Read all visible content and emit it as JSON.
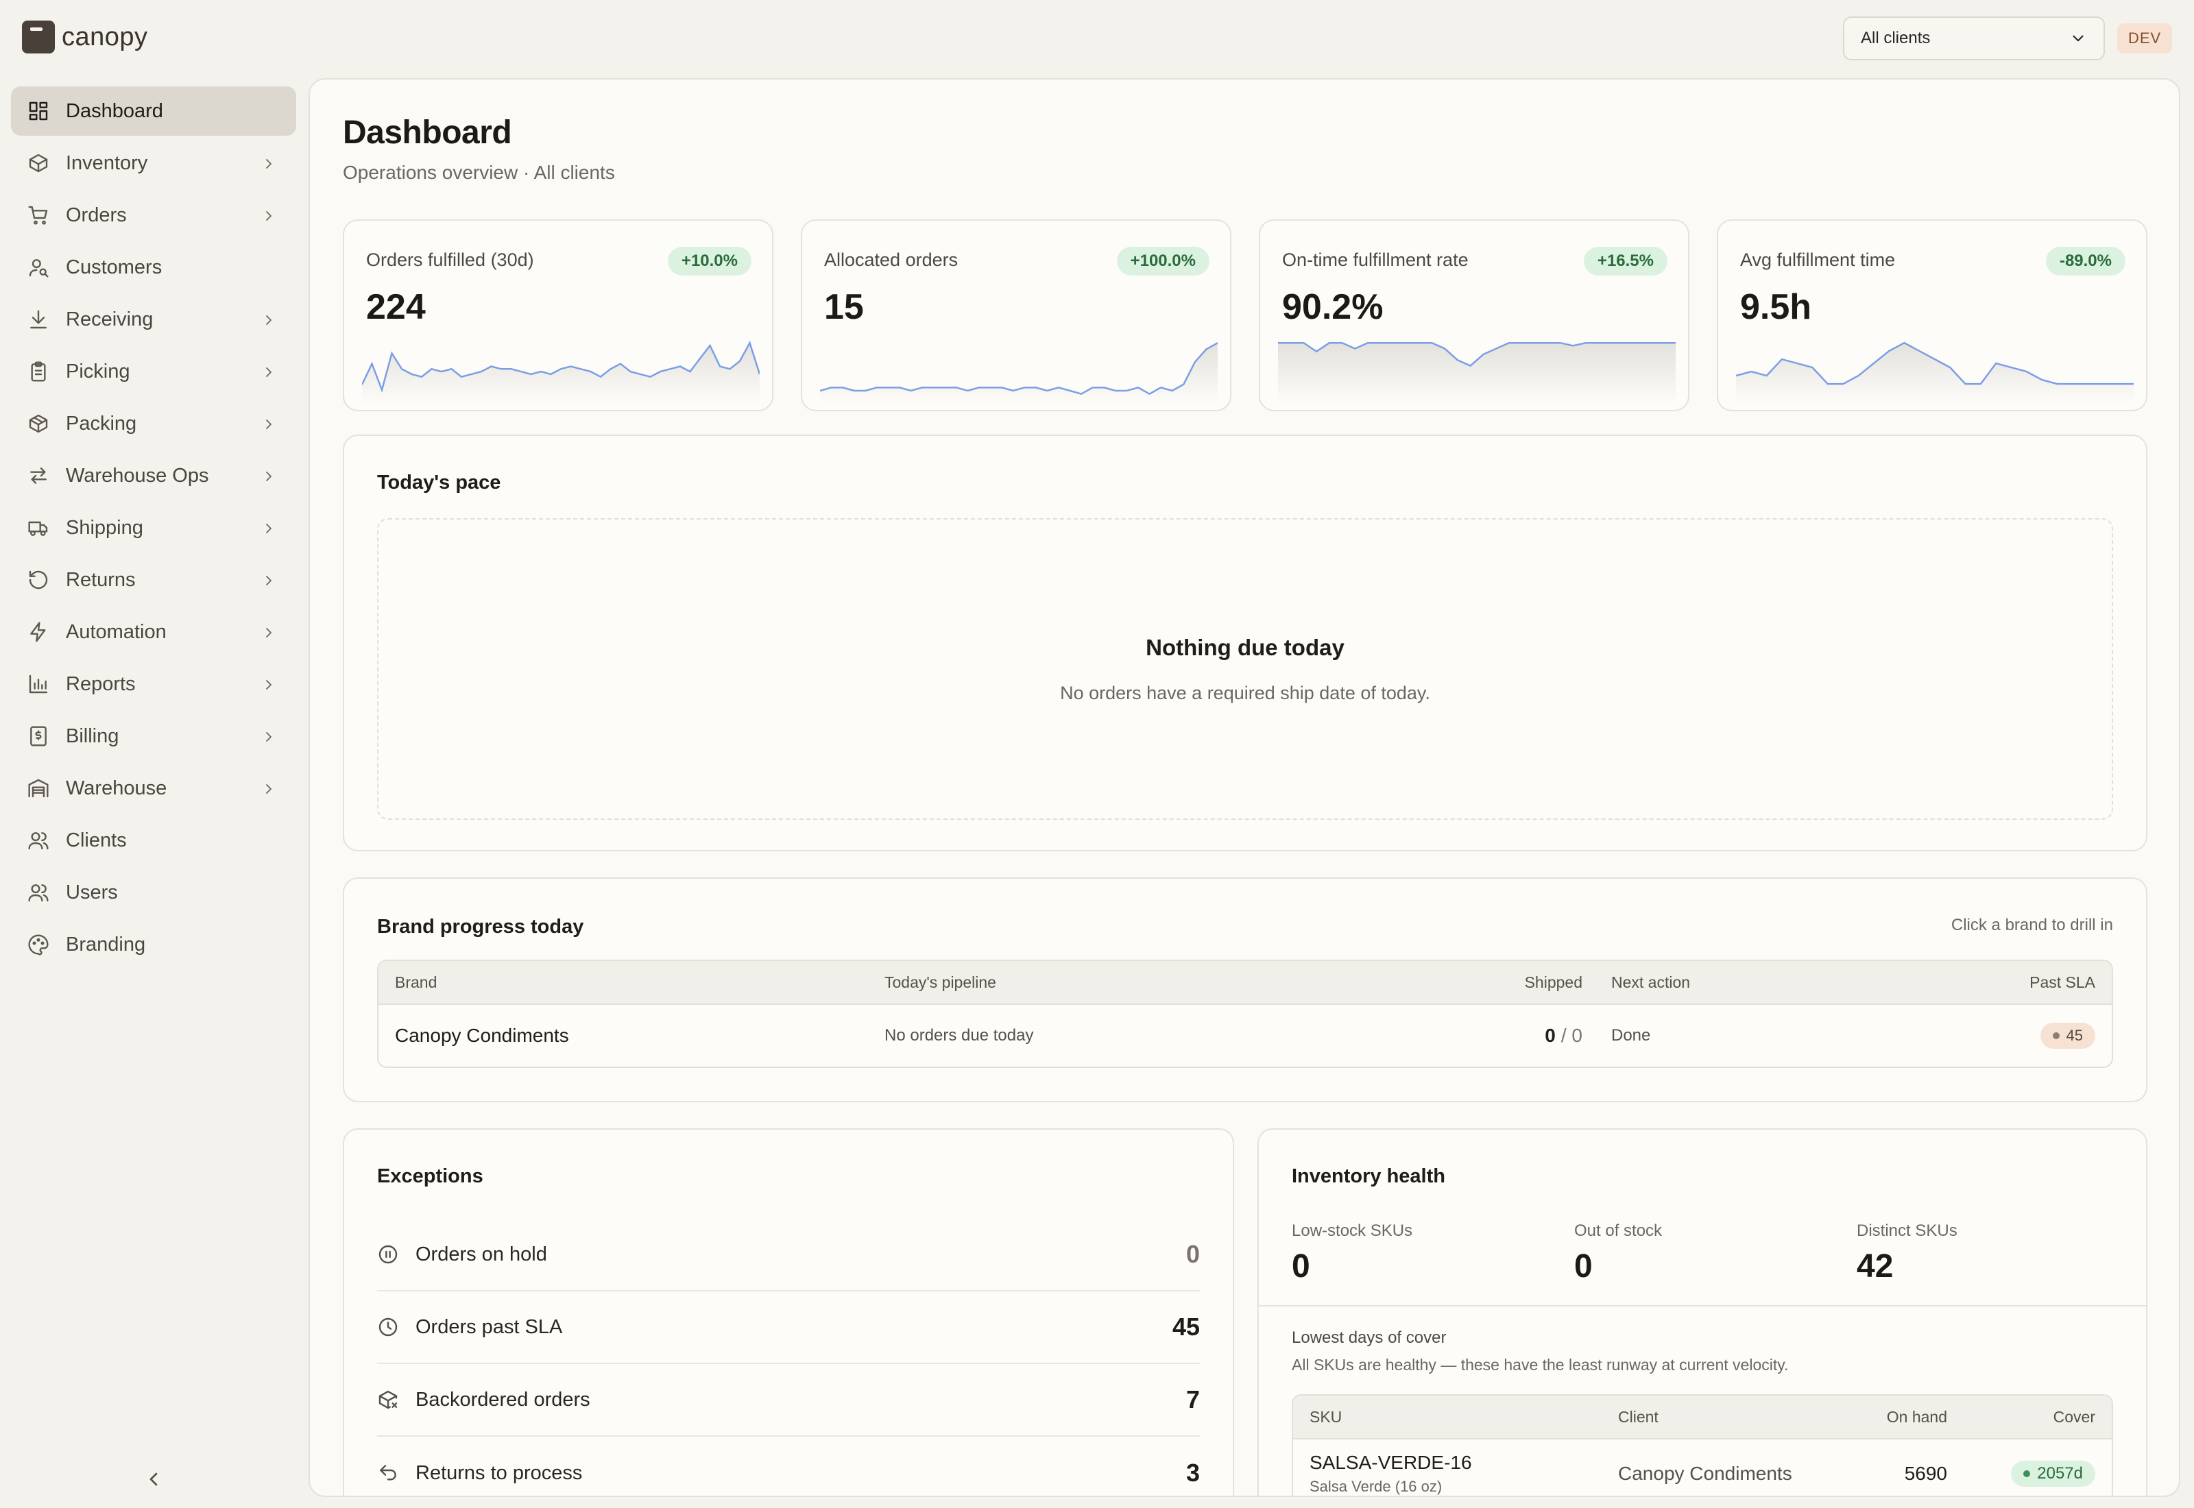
{
  "app": {
    "name": "canopy",
    "env_badge": "DEV"
  },
  "client_select": {
    "value": "All clients"
  },
  "sidebar": {
    "items": [
      {
        "label": "Dashboard",
        "icon": "dashboard-icon",
        "active": true,
        "has_children": false
      },
      {
        "label": "Inventory",
        "icon": "box-icon",
        "has_children": true
      },
      {
        "label": "Orders",
        "icon": "cart-icon",
        "has_children": true
      },
      {
        "label": "Customers",
        "icon": "user-icon",
        "has_children": false
      },
      {
        "label": "Receiving",
        "icon": "download-icon",
        "has_children": true
      },
      {
        "label": "Picking",
        "icon": "clipboard-icon",
        "has_children": true
      },
      {
        "label": "Packing",
        "icon": "package-icon",
        "has_children": true
      },
      {
        "label": "Warehouse Ops",
        "icon": "arrows-icon",
        "has_children": true
      },
      {
        "label": "Shipping",
        "icon": "truck-icon",
        "has_children": true
      },
      {
        "label": "Returns",
        "icon": "rotate-icon",
        "has_children": true
      },
      {
        "label": "Automation",
        "icon": "bolt-icon",
        "has_children": true
      },
      {
        "label": "Reports",
        "icon": "bar-chart-icon",
        "has_children": true
      },
      {
        "label": "Billing",
        "icon": "receipt-icon",
        "has_children": true
      },
      {
        "label": "Warehouse",
        "icon": "warehouse-icon",
        "has_children": true
      },
      {
        "label": "Clients",
        "icon": "users-icon",
        "has_children": false
      },
      {
        "label": "Users",
        "icon": "users-icon",
        "has_children": false
      },
      {
        "label": "Branding",
        "icon": "palette-icon",
        "has_children": false
      }
    ]
  },
  "header": {
    "title": "Dashboard",
    "subtitle": "Operations overview · All clients"
  },
  "kpis": [
    {
      "label": "Orders fulfilled (30d)",
      "value": "224",
      "delta": "+10.0%",
      "spark": [
        6,
        14,
        4,
        18,
        12,
        10,
        9,
        12,
        11,
        12,
        9,
        10,
        11,
        13,
        12,
        12,
        11,
        10,
        11,
        10,
        12,
        13,
        12,
        11,
        9,
        12,
        14,
        11,
        10,
        9,
        11,
        12,
        13,
        11,
        16,
        21,
        13,
        12,
        15,
        22,
        10
      ]
    },
    {
      "label": "Allocated orders",
      "value": "15",
      "delta": "+100.0%",
      "spark": [
        3,
        4,
        4,
        3,
        3,
        4,
        4,
        4,
        3,
        4,
        4,
        4,
        4,
        3,
        4,
        4,
        4,
        3,
        4,
        4,
        3,
        4,
        3,
        2,
        4,
        4,
        3,
        3,
        4,
        2,
        4,
        3,
        5,
        12,
        16,
        18
      ]
    },
    {
      "label": "On-time fulfillment rate",
      "value": "90.2%",
      "delta": "+16.5%",
      "spark": [
        20,
        20,
        20,
        17,
        20,
        20,
        18,
        20,
        20,
        20,
        20,
        20,
        20,
        18,
        14,
        12,
        16,
        18,
        20,
        20,
        20,
        20,
        20,
        19,
        20,
        20,
        20,
        20,
        20,
        20,
        20,
        20
      ]
    },
    {
      "label": "Avg fulfillment time",
      "value": "9.5h",
      "delta": "-89.0%",
      "spark": [
        6,
        7,
        6,
        10,
        9,
        8,
        4,
        4,
        6,
        9,
        12,
        14,
        12,
        10,
        8,
        4,
        4,
        9,
        8,
        7,
        5,
        4,
        4,
        4,
        4,
        4,
        4
      ]
    }
  ],
  "pace": {
    "title": "Today's pace",
    "empty_title": "Nothing due today",
    "empty_text": "No orders have a required ship date of today."
  },
  "brand_progress": {
    "title": "Brand progress today",
    "hint": "Click a brand to drill in",
    "columns": [
      "Brand",
      "Today's pipeline",
      "Shipped",
      "Next action",
      "Past SLA"
    ],
    "rows": [
      {
        "brand": "Canopy Condiments",
        "pipeline": "No orders due today",
        "shipped": "0",
        "shipped_total": "/ 0",
        "next_action": "Done",
        "past_sla": "45"
      }
    ]
  },
  "exceptions": {
    "title": "Exceptions",
    "items": [
      {
        "label": "Orders on hold",
        "count": "0",
        "icon": "pause-circle-icon"
      },
      {
        "label": "Orders past SLA",
        "count": "45",
        "icon": "clock-icon"
      },
      {
        "label": "Backordered orders",
        "count": "7",
        "icon": "package-x-icon"
      },
      {
        "label": "Returns to process",
        "count": "3",
        "icon": "undo-icon"
      }
    ]
  },
  "inventory": {
    "title": "Inventory health",
    "stats": [
      {
        "label": "Low-stock SKUs",
        "value": "0"
      },
      {
        "label": "Out of stock",
        "value": "0"
      },
      {
        "label": "Distinct SKUs",
        "value": "42"
      }
    ],
    "cover_title": "Lowest days of cover",
    "cover_text": "All SKUs are healthy — these have the least runway at current velocity.",
    "columns": [
      "SKU",
      "Client",
      "On hand",
      "Cover"
    ],
    "rows": [
      {
        "sku": "SALSA-VERDE-16",
        "name": "Salsa Verde (16 oz)",
        "client": "Canopy Condiments",
        "on_hand": "5690",
        "cover": "2057d"
      }
    ]
  },
  "colors": {
    "accent": "#7a9fe6",
    "positive_bg": "#dcf2e0",
    "positive_fg": "#2a6b3b",
    "warn_bg": "#f7e1d2"
  }
}
